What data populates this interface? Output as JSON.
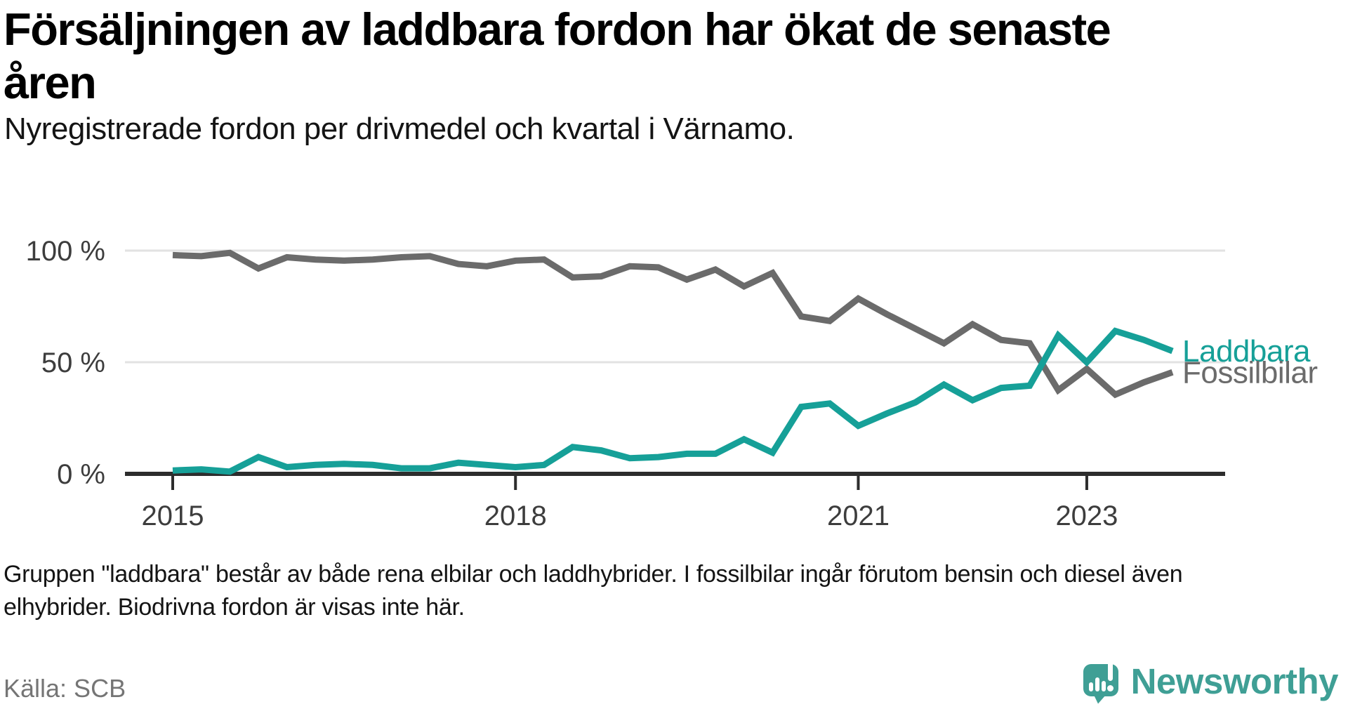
{
  "title": {
    "line1": "Försäljningen av laddbara fordon har ökat de senaste",
    "line2": "åren",
    "full": "Försäljningen av laddbara fordon har ökat de senaste åren"
  },
  "subtitle": "Nyregistrerade fordon per drivmedel och kvartal i Värnamo.",
  "footnote": {
    "line1": "Gruppen \"laddbara\" består av både rena elbilar och laddhybrider. I fossilbilar ingår förutom bensin och diesel även",
    "line2": "elhybrider. Biodrivna fordon är visas inte här."
  },
  "source": "Källa: SCB",
  "logo": {
    "text": "Newsworthy"
  },
  "colors": {
    "laddbara": "#16a098",
    "fossilbilar": "#6b6b6b",
    "grid": "#e2e2e2",
    "axis": "#2d2d2d",
    "tick_text": "#3d3d3d",
    "source_text": "#757575",
    "logo": "#3f9f95"
  },
  "chart_data": {
    "type": "line",
    "title": "Nyregistrerade fordon per drivmedel och kvartal i Värnamo",
    "unit": "percent",
    "ylim": [
      0,
      100
    ],
    "grid": "horizontal",
    "legend_position": "line-end-labels",
    "x": [
      "2015-K1",
      "2015-K2",
      "2015-K3",
      "2015-K4",
      "2016-K1",
      "2016-K2",
      "2016-K3",
      "2016-K4",
      "2017-K1",
      "2017-K2",
      "2017-K3",
      "2017-K4",
      "2018-K1",
      "2018-K2",
      "2018-K3",
      "2018-K4",
      "2019-K1",
      "2019-K2",
      "2019-K3",
      "2019-K4",
      "2020-K1",
      "2020-K2",
      "2020-K3",
      "2020-K4",
      "2021-K1",
      "2021-K2",
      "2021-K3",
      "2021-K4",
      "2022-K1",
      "2022-K2",
      "2022-K3",
      "2022-K4",
      "2023-K1",
      "2023-K2",
      "2023-K3",
      "2023-K4"
    ],
    "series": [
      {
        "name": "Laddbara",
        "color": "#16a098",
        "values": [
          1.5,
          2,
          1,
          7.5,
          3,
          4,
          4.5,
          4,
          2.5,
          2.5,
          5,
          4,
          3,
          4,
          12,
          10.5,
          7,
          7.5,
          9,
          9,
          15.5,
          9.5,
          30,
          31.5,
          21.5,
          27,
          32,
          40,
          33,
          38.5,
          39.5,
          62,
          50,
          64,
          60,
          55
        ]
      },
      {
        "name": "Fossilbilar",
        "color": "#6b6b6b",
        "values": [
          98,
          97.5,
          99,
          92,
          97,
          96,
          95.5,
          96,
          97,
          97.5,
          94,
          93,
          95.5,
          96,
          88,
          88.5,
          93,
          92.5,
          87,
          91.5,
          84,
          90,
          70.5,
          68.5,
          78.5,
          71.5,
          65,
          58.5,
          67,
          60,
          58.5,
          37.5,
          47,
          35.5,
          41,
          45.5
        ]
      }
    ],
    "yticks": [
      {
        "label": "100 %",
        "value": 100
      },
      {
        "label": "50 %",
        "value": 50
      },
      {
        "label": "0 %",
        "value": 0
      }
    ],
    "xticks": [
      {
        "label": "2015",
        "index": 0
      },
      {
        "label": "2018",
        "index": 12
      },
      {
        "label": "2021",
        "index": 24
      },
      {
        "label": "2023",
        "index": 32
      }
    ]
  }
}
